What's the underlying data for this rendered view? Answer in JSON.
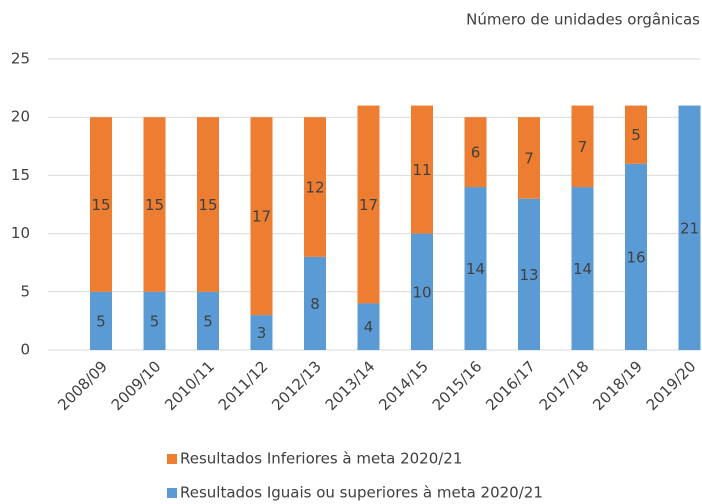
{
  "chart_data": {
    "type": "stacked_bar",
    "title": "Número de unidades orgânicas",
    "categories": [
      "2008/09",
      "2009/10",
      "2010/11",
      "2011/12",
      "2012/13",
      "2013/14",
      "2014/15",
      "2015/16",
      "2016/17",
      "2017/18",
      "2018/19",
      "2019/20"
    ],
    "series": [
      {
        "name": "Resultados Iguais ou superiores à meta 2020/21",
        "color": "#5b9bd5",
        "values": [
          5,
          5,
          5,
          3,
          8,
          4,
          10,
          14,
          13,
          14,
          16,
          21
        ]
      },
      {
        "name": "Resultados Inferiores à meta 2020/21",
        "color": "#ed7d31",
        "values": [
          15,
          15,
          15,
          17,
          12,
          17,
          11,
          6,
          7,
          7,
          5,
          null
        ]
      }
    ],
    "ylim": [
      0,
      25
    ],
    "yticks": [
      0,
      5,
      10,
      15,
      20,
      25
    ],
    "grid": true,
    "legend": "bottom"
  }
}
